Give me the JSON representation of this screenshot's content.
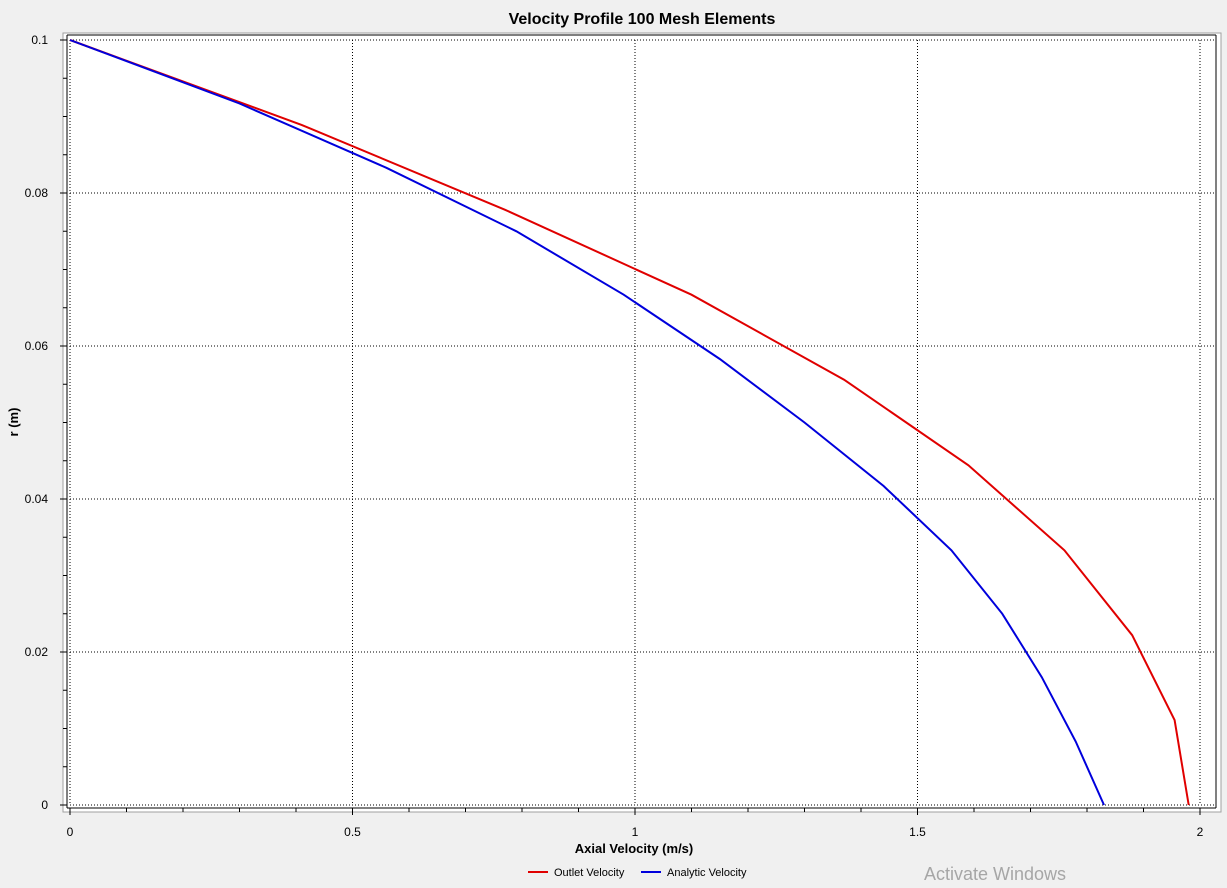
{
  "chart_data": {
    "type": "line",
    "title": "Velocity Profile 100 Mesh Elements",
    "xlabel": "Axial Velocity (m/s)",
    "ylabel": "r (m)",
    "xlim": [
      0,
      2
    ],
    "ylim": [
      0,
      0.1
    ],
    "x_ticks": [
      0,
      0.5,
      1,
      1.5,
      2
    ],
    "x_tick_labels": [
      "0",
      "0.5",
      "1",
      "1.5",
      "2"
    ],
    "y_ticks": [
      0,
      0.02,
      0.04,
      0.06,
      0.08,
      0.1
    ],
    "y_tick_labels": [
      "0",
      "0.02",
      "0.04",
      "0.06",
      "0.08",
      "0.1"
    ],
    "grid": true,
    "legend_position": "bottom-center",
    "series": [
      {
        "name": "Outlet Velocity",
        "color": "#e00000",
        "points": [
          [
            0,
            0.1
          ],
          [
            0.41,
            0.0889
          ],
          [
            0.77,
            0.0778
          ],
          [
            1.1,
            0.0667
          ],
          [
            1.37,
            0.0556
          ],
          [
            1.59,
            0.0444
          ],
          [
            1.76,
            0.0333
          ],
          [
            1.88,
            0.0222
          ],
          [
            1.955,
            0.0111
          ],
          [
            1.98,
            0
          ]
        ]
      },
      {
        "name": "Analytic Velocity",
        "color": "#0000dc",
        "points": [
          [
            0,
            0.1
          ],
          [
            0.3,
            0.0917
          ],
          [
            0.56,
            0.0833
          ],
          [
            0.79,
            0.075
          ],
          [
            0.98,
            0.0667
          ],
          [
            1.15,
            0.0583
          ],
          [
            1.3,
            0.05
          ],
          [
            1.44,
            0.0417
          ],
          [
            1.56,
            0.0333
          ],
          [
            1.65,
            0.025
          ],
          [
            1.72,
            0.0167
          ],
          [
            1.78,
            0.0083
          ],
          [
            1.83,
            0.0
          ]
        ]
      }
    ]
  },
  "watermark": "Activate Windows"
}
